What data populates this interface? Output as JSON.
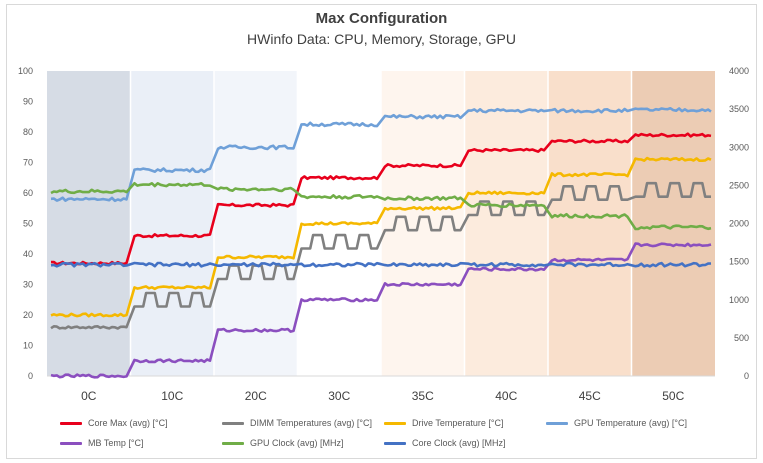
{
  "chart_data": {
    "type": "line",
    "title": "Max Configuration",
    "subtitle": "HWinfo Data: CPU, Memory, Storage, GPU",
    "categories": [
      "0C",
      "10C",
      "20C",
      "30C",
      "35C",
      "40C",
      "45C",
      "50C"
    ],
    "category_shading": [
      "#d6dce5",
      "#eaeff7",
      "#f2f5fa",
      "#ffffff",
      "#fef5ee",
      "#fcebdd",
      "#f9dfcb",
      "#ecccb4"
    ],
    "y_left": {
      "min": 0,
      "max": 100,
      "ticks": [
        0,
        10,
        20,
        30,
        40,
        50,
        60,
        70,
        80,
        90,
        100
      ]
    },
    "y_right": {
      "min": 0,
      "max": 4000,
      "ticks": [
        0,
        500,
        1000,
        1500,
        2000,
        2500,
        3000,
        3500,
        4000
      ]
    },
    "grid": "vertical separators between categories",
    "legend_position": "bottom",
    "series": [
      {
        "name": "Core Max (avg) [°C]",
        "color": "#e8001c",
        "axis": "left",
        "values": [
          37,
          46,
          56,
          65,
          69,
          74,
          77,
          79
        ]
      },
      {
        "name": "DIMM Temperatures (avg) [°C]",
        "color": "#808080",
        "axis": "left",
        "values": [
          16,
          25,
          34,
          44,
          50,
          55,
          60,
          61
        ]
      },
      {
        "name": "Drive Temperature [°C]",
        "color": "#f5b800",
        "axis": "left",
        "values": [
          20,
          29,
          39,
          50,
          55,
          60,
          66,
          71
        ]
      },
      {
        "name": "GPU Temperature (avg) [°C]",
        "color": "#6fa0d8",
        "axis": "right",
        "values": [
          2320,
          2700,
          3000,
          3300,
          3400,
          3480,
          3480,
          3490
        ]
      },
      {
        "name": "MB Temp [°C]",
        "color": "#8b4fbf",
        "axis": "left",
        "values": [
          0,
          5,
          15,
          25,
          30,
          35,
          38,
          43
        ]
      },
      {
        "name": "GPU Clock (avg) [MHz]",
        "color": "#70ad47",
        "axis": "right",
        "values": [
          2420,
          2510,
          2450,
          2350,
          2330,
          2240,
          2100,
          1950
        ]
      },
      {
        "name": "Core Clock (avg) [MHz]",
        "color": "#4472c4",
        "axis": "right",
        "values": [
          1460,
          1460,
          1460,
          1460,
          1460,
          1460,
          1460,
          1460
        ]
      }
    ]
  }
}
